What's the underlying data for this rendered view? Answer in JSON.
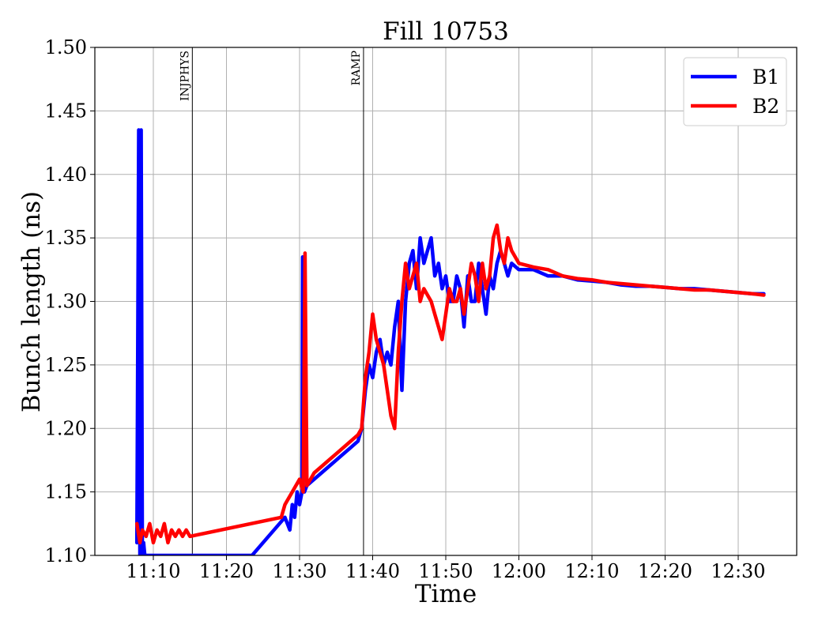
{
  "chart_data": {
    "type": "line",
    "title": "Fill 10753",
    "xlabel": "Time",
    "ylabel": "Bunch length (ns)",
    "xlim": [
      "11:02",
      "12:38"
    ],
    "ylim": [
      1.1,
      1.5
    ],
    "xticks": [
      "11:10",
      "11:20",
      "11:30",
      "11:40",
      "11:50",
      "12:00",
      "12:10",
      "12:20",
      "12:30"
    ],
    "yticks": [
      "1.10",
      "1.15",
      "1.20",
      "1.25",
      "1.30",
      "1.35",
      "1.40",
      "1.45",
      "1.50"
    ],
    "grid": true,
    "legend": "top-right",
    "annotations": [
      {
        "label": "INJPHYS",
        "x": "11:15:20"
      },
      {
        "label": "RAMP",
        "x": "11:38:45"
      }
    ],
    "series": [
      {
        "name": "B1",
        "color": "#0000ff",
        "x": [
          "11:07:45",
          "11:08:00",
          "11:08:10",
          "11:08:20",
          "11:08:30",
          "11:08:40",
          "11:08:50",
          "11:09:30",
          "11:10:00",
          "11:23:30",
          "11:28:00",
          "11:28:40",
          "11:29:00",
          "11:29:20",
          "11:29:40",
          "11:30:00",
          "11:30:20",
          "11:30:25",
          "11:30:30",
          "11:30:40",
          "11:31:00",
          "11:32:00",
          "11:33:00",
          "11:34:00",
          "11:35:00",
          "11:36:00",
          "11:37:00",
          "11:38:00",
          "11:38:30",
          "11:39:00",
          "11:39:30",
          "11:40:00",
          "11:40:30",
          "11:41:00",
          "11:41:30",
          "11:42:00",
          "11:42:30",
          "11:43:00",
          "11:43:30",
          "11:44:00",
          "11:44:30",
          "11:45:00",
          "11:45:30",
          "11:46:00",
          "11:46:30",
          "11:47:00",
          "11:47:30",
          "11:48:00",
          "11:48:30",
          "11:49:00",
          "11:49:30",
          "11:50:00",
          "11:50:30",
          "11:51:00",
          "11:51:30",
          "11:52:00",
          "11:52:30",
          "11:53:00",
          "11:53:30",
          "11:54:00",
          "11:54:30",
          "11:55:00",
          "11:55:30",
          "11:56:00",
          "11:56:30",
          "11:57:00",
          "11:57:30",
          "11:58:00",
          "11:58:30",
          "11:59:00",
          "12:00:00",
          "12:02:00",
          "12:04:00",
          "12:06:00",
          "12:08:00",
          "12:10:00",
          "12:12:00",
          "12:14:00",
          "12:16:00",
          "12:18:00",
          "12:20:00",
          "12:22:00",
          "12:24:00",
          "12:26:00",
          "12:28:00",
          "12:30:00",
          "12:32:00",
          "12:33:30"
        ],
        "y": [
          1.11,
          1.435,
          1.1,
          1.435,
          1.1,
          1.11,
          1.1,
          1.1,
          1.1,
          1.1,
          1.13,
          1.12,
          1.14,
          1.13,
          1.15,
          1.14,
          1.15,
          1.335,
          1.15,
          1.15,
          1.155,
          1.16,
          1.165,
          1.17,
          1.175,
          1.18,
          1.185,
          1.19,
          1.2,
          1.23,
          1.25,
          1.24,
          1.26,
          1.27,
          1.25,
          1.26,
          1.25,
          1.28,
          1.3,
          1.23,
          1.3,
          1.33,
          1.34,
          1.31,
          1.35,
          1.33,
          1.34,
          1.35,
          1.32,
          1.33,
          1.31,
          1.32,
          1.3,
          1.3,
          1.32,
          1.31,
          1.28,
          1.32,
          1.3,
          1.3,
          1.33,
          1.31,
          1.29,
          1.32,
          1.31,
          1.33,
          1.34,
          1.33,
          1.32,
          1.33,
          1.325,
          1.325,
          1.32,
          1.32,
          1.317,
          1.316,
          1.315,
          1.313,
          1.312,
          1.312,
          1.311,
          1.31,
          1.31,
          1.309,
          1.308,
          1.307,
          1.306,
          1.306
        ]
      },
      {
        "name": "B2",
        "color": "#ff0000",
        "x": [
          "11:07:45",
          "11:08:10",
          "11:08:30",
          "11:09:00",
          "11:09:30",
          "11:10:00",
          "11:10:30",
          "11:11:00",
          "11:11:30",
          "11:12:00",
          "11:12:30",
          "11:13:00",
          "11:13:30",
          "11:14:00",
          "11:14:30",
          "11:15:00",
          "11:27:30",
          "11:28:00",
          "11:28:30",
          "11:29:00",
          "11:29:30",
          "11:30:00",
          "11:30:30",
          "11:30:45",
          "11:31:00",
          "11:32:00",
          "11:33:00",
          "11:34:00",
          "11:35:00",
          "11:36:00",
          "11:37:00",
          "11:38:00",
          "11:38:30",
          "11:39:00",
          "11:39:30",
          "11:40:00",
          "11:40:30",
          "11:41:00",
          "11:41:30",
          "11:42:00",
          "11:42:30",
          "11:43:00",
          "11:43:30",
          "11:44:00",
          "11:44:30",
          "11:45:00",
          "11:45:30",
          "11:46:00",
          "11:46:30",
          "11:47:00",
          "11:47:30",
          "11:48:00",
          "11:48:30",
          "11:49:00",
          "11:49:30",
          "11:50:00",
          "11:50:30",
          "11:51:00",
          "11:51:30",
          "11:52:00",
          "11:52:30",
          "11:53:00",
          "11:53:30",
          "11:54:00",
          "11:54:30",
          "11:55:00",
          "11:55:30",
          "11:56:00",
          "11:56:30",
          "11:57:00",
          "11:57:30",
          "11:58:00",
          "11:58:30",
          "11:59:00",
          "12:00:00",
          "12:02:00",
          "12:04:00",
          "12:06:00",
          "12:08:00",
          "12:10:00",
          "12:12:00",
          "12:14:00",
          "12:16:00",
          "12:18:00",
          "12:20:00",
          "12:22:00",
          "12:24:00",
          "12:26:00",
          "12:28:00",
          "12:30:00",
          "12:32:00",
          "12:33:30"
        ],
        "y": [
          1.125,
          1.11,
          1.12,
          1.115,
          1.125,
          1.11,
          1.12,
          1.115,
          1.125,
          1.11,
          1.12,
          1.115,
          1.12,
          1.115,
          1.12,
          1.115,
          1.13,
          1.14,
          1.145,
          1.15,
          1.155,
          1.16,
          1.15,
          1.338,
          1.155,
          1.165,
          1.17,
          1.175,
          1.18,
          1.185,
          1.19,
          1.195,
          1.2,
          1.24,
          1.26,
          1.29,
          1.27,
          1.26,
          1.25,
          1.23,
          1.21,
          1.2,
          1.26,
          1.3,
          1.33,
          1.31,
          1.32,
          1.33,
          1.3,
          1.31,
          1.305,
          1.3,
          1.29,
          1.28,
          1.27,
          1.29,
          1.31,
          1.3,
          1.3,
          1.31,
          1.29,
          1.31,
          1.33,
          1.32,
          1.3,
          1.33,
          1.31,
          1.32,
          1.35,
          1.36,
          1.34,
          1.33,
          1.35,
          1.34,
          1.33,
          1.327,
          1.325,
          1.32,
          1.318,
          1.317,
          1.315,
          1.314,
          1.313,
          1.312,
          1.311,
          1.31,
          1.309,
          1.309,
          1.308,
          1.307,
          1.306,
          1.305
        ]
      }
    ]
  }
}
